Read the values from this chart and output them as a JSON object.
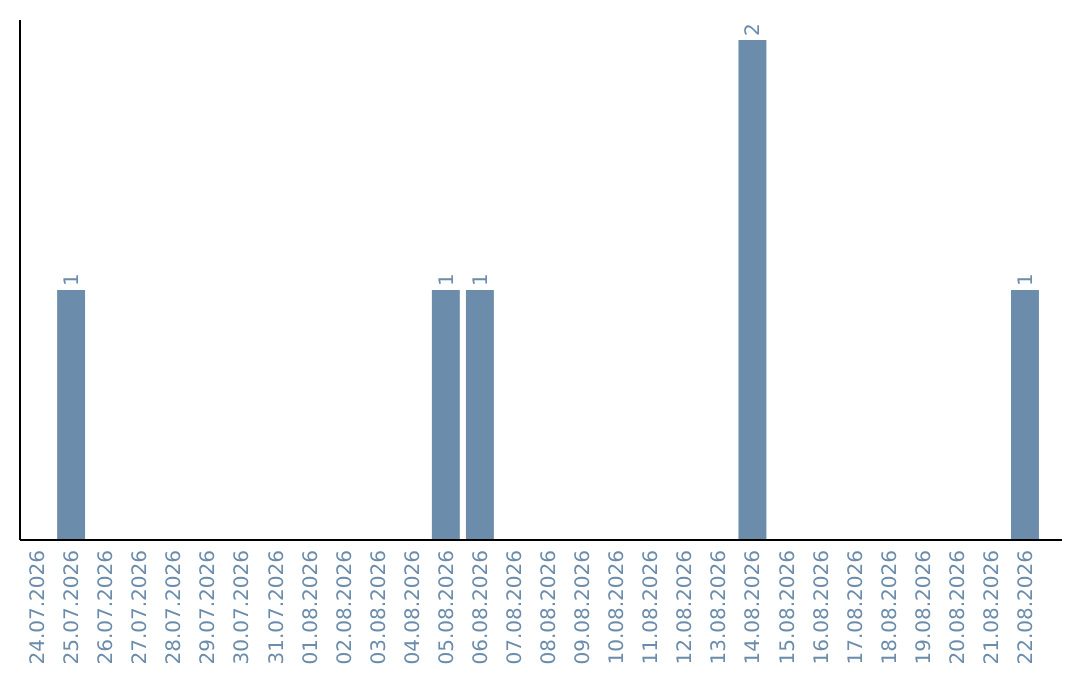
{
  "chart_data": {
    "type": "bar",
    "categories": [
      "24.07.2026",
      "25.07.2026",
      "26.07.2026",
      "27.07.2026",
      "28.07.2026",
      "29.07.2026",
      "30.07.2026",
      "31.07.2026",
      "01.08.2026",
      "02.08.2026",
      "03.08.2026",
      "04.08.2026",
      "05.08.2026",
      "06.08.2026",
      "07.08.2026",
      "08.08.2026",
      "09.08.2026",
      "10.08.2026",
      "11.08.2026",
      "12.08.2026",
      "13.08.2026",
      "14.08.2026",
      "15.08.2026",
      "16.08.2026",
      "17.08.2026",
      "18.08.2026",
      "19.08.2026",
      "20.08.2026",
      "21.08.2026",
      "22.08.2026"
    ],
    "values": [
      0,
      1,
      0,
      0,
      0,
      0,
      0,
      0,
      0,
      0,
      0,
      0,
      1,
      1,
      0,
      0,
      0,
      0,
      0,
      0,
      0,
      2,
      0,
      0,
      0,
      0,
      0,
      0,
      0,
      1
    ],
    "value_labels": [
      null,
      "1",
      null,
      null,
      null,
      null,
      null,
      null,
      null,
      null,
      null,
      null,
      "1",
      "1",
      null,
      null,
      null,
      null,
      null,
      null,
      null,
      "2",
      null,
      null,
      null,
      null,
      null,
      null,
      null,
      "1"
    ],
    "color": "#6b8cab",
    "ylim": [
      0,
      2.08
    ],
    "tick_labels": "x"
  }
}
